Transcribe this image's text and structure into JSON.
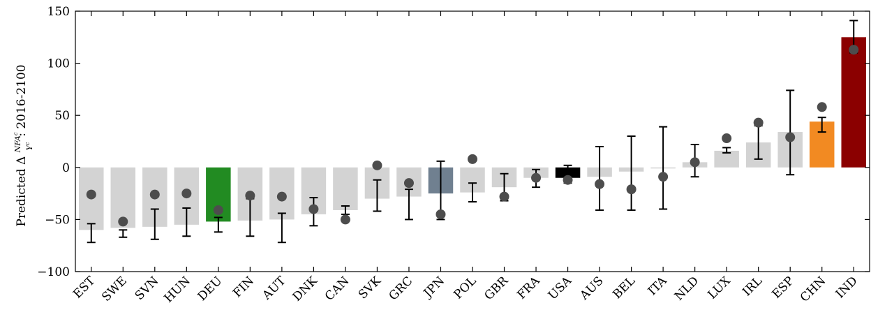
{
  "chart_data": {
    "type": "bar",
    "ylabel": "Predicted Δ NFA^c/Y^c: 2016-2100",
    "ylabel_parts": {
      "prefix": "Predicted Δ",
      "num": "NFA",
      "num_sup": "c",
      "den": "Y",
      "den_sup": "c",
      "suffix": ": 2016-2100"
    },
    "ylim": [
      -100,
      150
    ],
    "yticks": [
      -100,
      -50,
      0,
      50,
      100,
      150
    ],
    "ytick_labels": [
      "−100",
      "−50",
      "0",
      "50",
      "100",
      "150"
    ],
    "grid": false,
    "categories": [
      "EST",
      "SWE",
      "SVN",
      "HUN",
      "DEU",
      "FIN",
      "AUT",
      "DNK",
      "CAN",
      "SVK",
      "GRC",
      "JPN",
      "POL",
      "GBR",
      "FRA",
      "USA",
      "AUS",
      "BEL",
      "ITA",
      "NLD",
      "LUX",
      "IRL",
      "ESP",
      "CHN",
      "IND"
    ],
    "values": [
      -60,
      -58,
      -57,
      -55,
      -52,
      -51,
      -50,
      -45,
      -41,
      -30,
      -28,
      -25,
      -24,
      -19,
      -10,
      -10,
      -9,
      -4,
      -1,
      5,
      16,
      24,
      34,
      44,
      125
    ],
    "error_low": [
      -72,
      -67,
      -69,
      -66,
      -62,
      -66,
      -72,
      -56,
      -45,
      -42,
      -50,
      -50,
      -33,
      -32,
      -19,
      -15,
      -41,
      -41,
      -40,
      -9,
      14,
      8,
      -7,
      34,
      110
    ],
    "error_high": [
      -54,
      -60,
      -40,
      -39,
      -48,
      -30,
      -44,
      -29,
      -37,
      -12,
      -21,
      6,
      -15,
      -6,
      -2,
      2,
      20,
      30,
      39,
      22,
      19,
      40,
      74,
      48,
      141
    ],
    "dots": [
      -26,
      -52,
      -26,
      -25,
      -41,
      -27,
      -28,
      -40,
      -50,
      2,
      -15,
      -45,
      8,
      -28,
      -10,
      -12,
      -16,
      -21,
      -9,
      5,
      28,
      43,
      29,
      58,
      113
    ],
    "bar_colors": [
      "#d3d3d3",
      "#d3d3d3",
      "#d3d3d3",
      "#d3d3d3",
      "#228b22",
      "#d3d3d3",
      "#d3d3d3",
      "#d3d3d3",
      "#d3d3d3",
      "#d3d3d3",
      "#d3d3d3",
      "#708090",
      "#d3d3d3",
      "#d3d3d3",
      "#d3d3d3",
      "#000000",
      "#d3d3d3",
      "#d3d3d3",
      "#d3d3d3",
      "#d3d3d3",
      "#d3d3d3",
      "#d3d3d3",
      "#d3d3d3",
      "#f28a22",
      "#8b0000"
    ],
    "dot_color": "#4d4d4d",
    "errorbar_color": "#000000"
  }
}
